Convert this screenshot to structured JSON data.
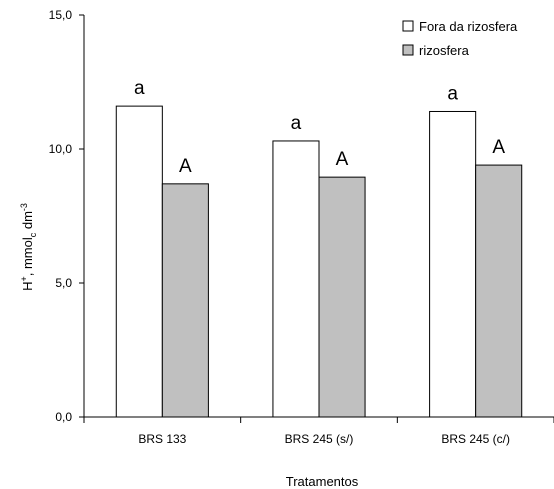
{
  "chart_data": {
    "type": "bar",
    "categories": [
      "BRS 133",
      "BRS 245 (s/)",
      "BRS 245 (c/)"
    ],
    "series": [
      {
        "name": "Fora da rizosfera",
        "values": [
          11.6,
          10.3,
          11.4
        ],
        "letters": [
          "a",
          "a",
          "a"
        ],
        "color": "#ffffff"
      },
      {
        "name": "rizosfera",
        "values": [
          8.7,
          8.95,
          9.4
        ],
        "letters": [
          "A",
          "A",
          "A"
        ],
        "color": "#c0c0c0"
      }
    ],
    "yticks": [
      "0,0",
      "5,0",
      "10,0",
      "15,0"
    ],
    "ytick_values": [
      0,
      5,
      10,
      15
    ],
    "ylim": [
      0,
      15
    ],
    "ylabel": {
      "main": "H",
      "sup": "+",
      "mid": ", mmol",
      "sub": "c",
      "unit": " dm",
      "unit_sup": "-3"
    },
    "xlabel": "Tratamentos",
    "legend_position": "top-right",
    "grid": false
  }
}
